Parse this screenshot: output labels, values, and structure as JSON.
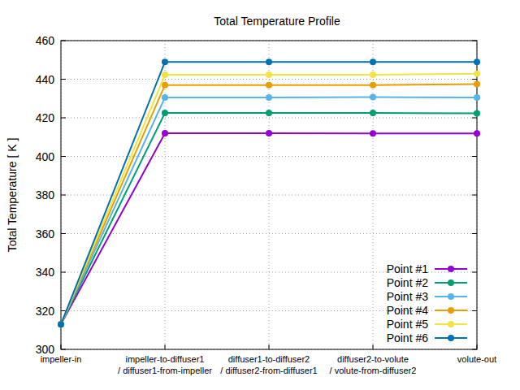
{
  "chart_data": {
    "type": "line",
    "title": "Total Temperature Profile",
    "y_label": "Total Temperature [ K ]",
    "categories": [
      "impeller-in",
      "impeller-to-diffuser1\n/ diffuser1-from-impeller",
      "diffuser1-to-diffuser2\n/ diffuser2-from-diffuser1",
      "diffuser2-to-volute\n/ volute-from-diffuser2",
      "volute-out"
    ],
    "series": [
      {
        "name": "Point #1",
        "color": "#9400d3",
        "values": [
          313,
          412,
          412,
          411.9,
          411.9
        ]
      },
      {
        "name": "Point #2",
        "color": "#009e73",
        "values": [
          313,
          422.5,
          422.5,
          422.5,
          422.3
        ]
      },
      {
        "name": "Point #3",
        "color": "#56b4e9",
        "values": [
          313,
          430.5,
          430.5,
          430.7,
          430.5
        ]
      },
      {
        "name": "Point #4",
        "color": "#e69f00",
        "values": [
          313,
          437,
          437,
          437,
          437.5
        ]
      },
      {
        "name": "Point #5",
        "color": "#f0e442",
        "values": [
          313,
          442.3,
          442.3,
          442.3,
          442.8
        ]
      },
      {
        "name": "Point #6",
        "color": "#0072b2",
        "values": [
          313,
          449,
          449,
          449,
          449
        ]
      }
    ],
    "ylim": [
      300,
      460
    ],
    "yticks": [
      300,
      320,
      340,
      360,
      380,
      400,
      420,
      440,
      460
    ],
    "grid": true,
    "legend": "lower right",
    "marker": "circle"
  }
}
